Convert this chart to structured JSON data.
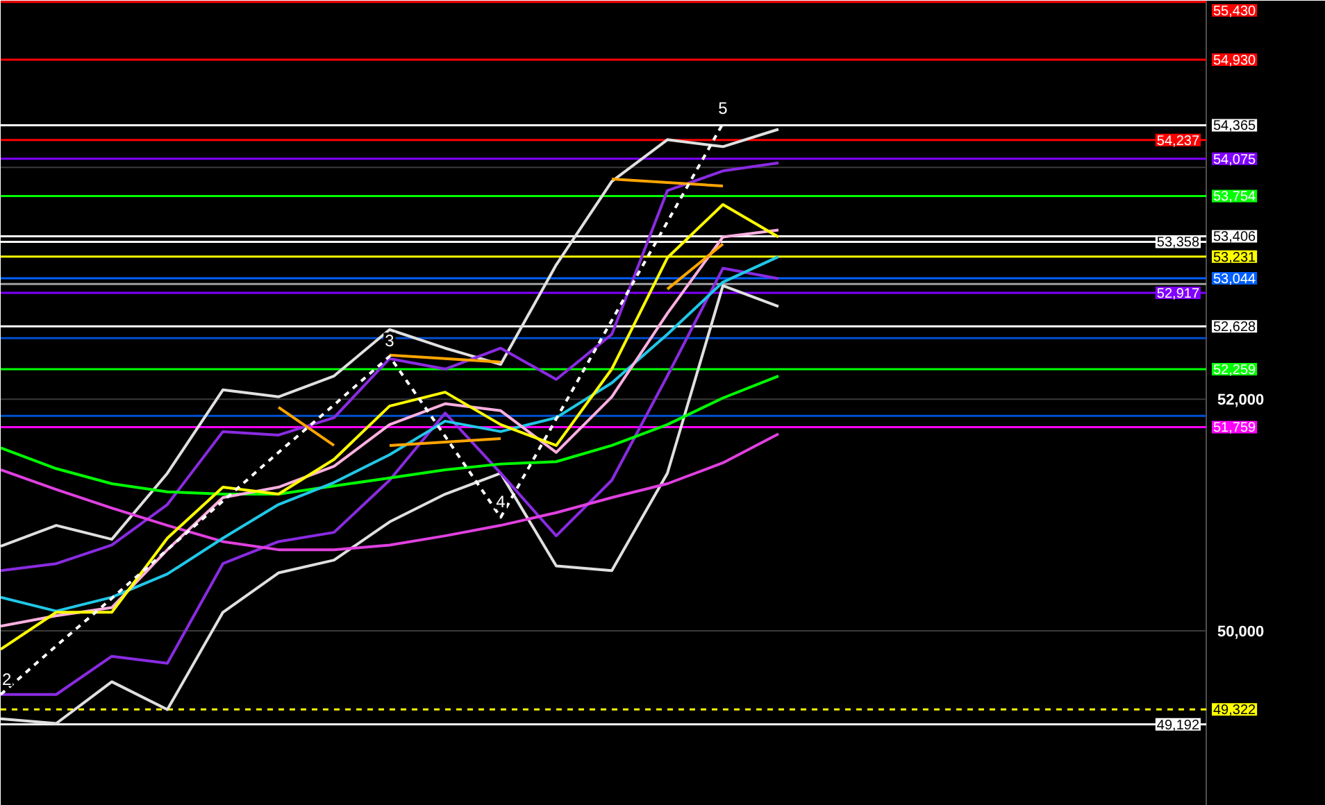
{
  "chart_data": {
    "type": "line",
    "categories": [
      null,
      null,
      null,
      null,
      null,
      null,
      null,
      null,
      null,
      null,
      null,
      null,
      null,
      null,
      null
    ],
    "ylim": [
      48490,
      55440
    ],
    "yticks": [
      {
        "value": 50000,
        "label": "50,000"
      },
      {
        "value": 52000,
        "label": "52,000"
      },
      {
        "value": 54000,
        "label": null
      }
    ],
    "grid": "y",
    "tick_labels": "y",
    "series": [
      {
        "color": "#e0e0e0",
        "values": [
          50730,
          50910,
          50790,
          51360,
          52080,
          52020,
          52200,
          52600,
          52440,
          52300,
          53160,
          53880,
          54240,
          54180,
          54330
        ]
      },
      {
        "color": "#e0e0e0",
        "values": [
          49240,
          49200,
          49560,
          49320,
          50160,
          50500,
          50610,
          50940,
          51180,
          51360,
          50560,
          50520,
          51360,
          52980,
          52800
        ]
      },
      {
        "color": "#8a2be2",
        "values": [
          50520,
          50580,
          50740,
          51090,
          51720,
          51690,
          51840,
          52350,
          52260,
          52440,
          52170,
          52560,
          53800,
          53970,
          54040
        ]
      },
      {
        "color": "#8a2be2",
        "values": [
          49450,
          49450,
          49780,
          49720,
          50580,
          50770,
          50850,
          51300,
          51880,
          51360,
          50820,
          51300,
          52200,
          53130,
          53040
        ]
      },
      {
        "color": "#00ff00",
        "values": [
          51580,
          51400,
          51270,
          51200,
          51180,
          51180,
          51250,
          51320,
          51390,
          51440,
          51460,
          51600,
          51780,
          52010,
          52200
        ]
      },
      {
        "color": "#e040e0",
        "values": [
          51390,
          51220,
          51060,
          50910,
          50770,
          50700,
          50700,
          50740,
          50820,
          50910,
          51020,
          51150,
          51270,
          51450,
          51700
        ]
      },
      {
        "color": "#20c8e8",
        "values": [
          50290,
          50170,
          50290,
          50490,
          50800,
          51090,
          51280,
          51520,
          51810,
          51720,
          51840,
          52140,
          52560,
          53010,
          53230
        ]
      },
      {
        "color": "#ffb0e0",
        "values": [
          50040,
          50130,
          50200,
          50700,
          51150,
          51240,
          51420,
          51780,
          51960,
          51900,
          51540,
          52020,
          52740,
          53400,
          53460
        ]
      },
      {
        "color": "#ffff00",
        "values": [
          49840,
          50160,
          50160,
          50800,
          51240,
          51180,
          51480,
          51940,
          52060,
          51780,
          51600,
          52260,
          53220,
          53680,
          53400
        ]
      },
      {
        "color": "#ffa500",
        "values": [
          null,
          null,
          null,
          null,
          null,
          51930,
          51600,
          null,
          null,
          null,
          null,
          null,
          null,
          null,
          null
        ]
      },
      {
        "color": "#ffa500",
        "values": [
          null,
          null,
          null,
          null,
          null,
          null,
          null,
          52380,
          52350,
          52320,
          null,
          null,
          null,
          null,
          null
        ]
      },
      {
        "color": "#ffa500",
        "values": [
          null,
          null,
          null,
          null,
          null,
          null,
          null,
          51600,
          51630,
          51660,
          null,
          null,
          null,
          null,
          null
        ]
      },
      {
        "color": "#ffa500",
        "values": [
          null,
          null,
          null,
          null,
          null,
          null,
          null,
          null,
          null,
          null,
          null,
          53900,
          53870,
          53840,
          null
        ]
      },
      {
        "color": "#ffa500",
        "values": [
          null,
          null,
          null,
          null,
          null,
          null,
          null,
          null,
          null,
          null,
          null,
          null,
          52950,
          53340,
          null
        ]
      },
      {
        "color": "#ffffff",
        "line_style": "dashed",
        "values": [
          49450,
          49870,
          50280,
          50700,
          51120,
          51540,
          51950,
          52370,
          51680,
          50980,
          51830,
          52680,
          53530,
          54380,
          null
        ]
      }
    ],
    "annotations": [
      "2",
      "3",
      "4",
      "5"
    ],
    "ref_lines": [
      {
        "axis": "y",
        "value": 55430,
        "label": "55,430",
        "color": "#ff0000"
      },
      {
        "axis": "y",
        "value": 54930,
        "label": "54,930",
        "color": "#ff0000"
      },
      {
        "axis": "y",
        "value": 54365,
        "label": "54,365",
        "color": "#ffffff"
      },
      {
        "axis": "y",
        "value": 54237,
        "label": "54,237",
        "color": "#ff0000"
      },
      {
        "axis": "y",
        "value": 54075,
        "label": "54,075",
        "color": "#8000ff"
      },
      {
        "axis": "y",
        "value": 53754,
        "label": "53,754",
        "color": "#00ff00"
      },
      {
        "axis": "y",
        "value": 53406,
        "label": "53,406",
        "color": "#ffffff"
      },
      {
        "axis": "y",
        "value": 53358,
        "label": "53,358",
        "color": "#ffffff"
      },
      {
        "axis": "y",
        "value": 53231,
        "label": "53,231",
        "color": "#ffff00"
      },
      {
        "axis": "y",
        "value": 53044,
        "label": "53,044",
        "color": "#0060ff",
        "line_style": "solid"
      },
      {
        "axis": "y",
        "value": 52994,
        "label": null,
        "color": "#a0a0a0",
        "line_style": "solid"
      },
      {
        "axis": "y",
        "value": 52917,
        "label": "52,917",
        "color": "#8000ff"
      },
      {
        "axis": "y",
        "value": 52628,
        "label": "52,628",
        "color": "#ffffff"
      },
      {
        "axis": "y",
        "value": 52527,
        "label": null,
        "color": "#0050d0"
      },
      {
        "axis": "y",
        "value": 52259,
        "label": "52,259",
        "color": "#00ff00"
      },
      {
        "axis": "y",
        "value": 51856,
        "label": null,
        "color": "#0050d0"
      },
      {
        "axis": "y",
        "value": 51759,
        "label": "51,759",
        "color": "#ff00ff"
      },
      {
        "axis": "y",
        "value": 49322,
        "label": "49,322",
        "color": "#ffff00",
        "line_style": "dashed"
      },
      {
        "axis": "y",
        "value": 49192,
        "label": "49,192",
        "color": "#ffffff",
        "line_style": "solid"
      }
    ]
  }
}
